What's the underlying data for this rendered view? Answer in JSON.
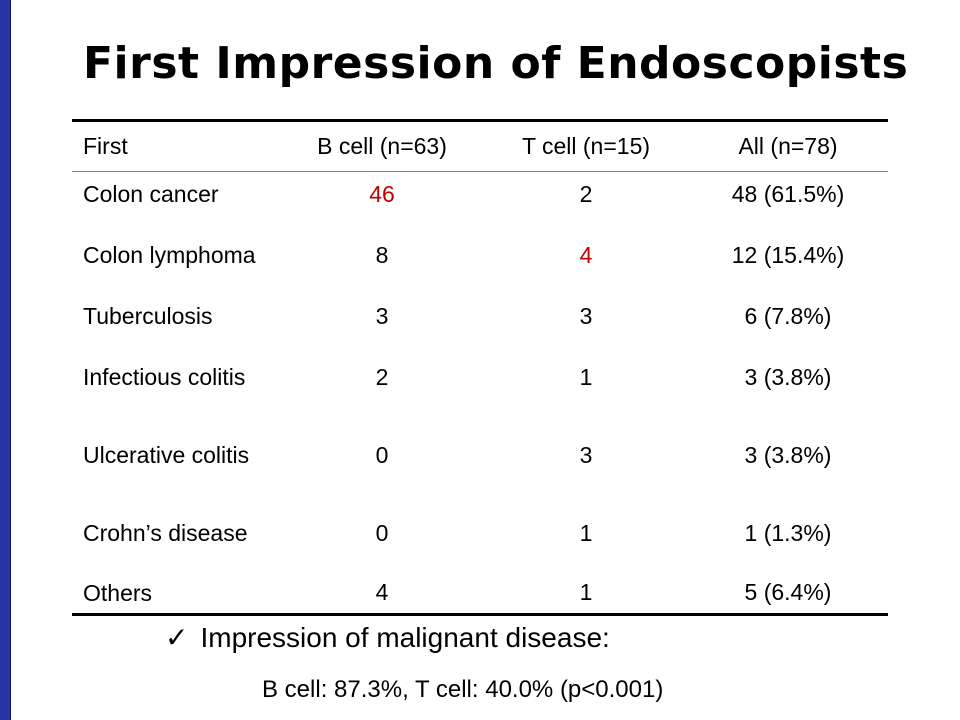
{
  "title": "First Impression of Endoscopists",
  "table": {
    "headers": [
      "First",
      "B cell (n=63)",
      "T cell (n=15)",
      "All (n=78)"
    ],
    "rows": [
      {
        "label": "Colon cancer",
        "b_cell": "46",
        "t_cell": "2",
        "all": "48 (61.5%)"
      },
      {
        "label": "Colon lymphoma",
        "b_cell": "8",
        "t_cell": "4",
        "all": "12 (15.4%)"
      },
      {
        "label": "Tuberculosis",
        "b_cell": "3",
        "t_cell": "3",
        "all": "6 (7.8%)"
      },
      {
        "label": "Infectious colitis",
        "b_cell": "2",
        "t_cell": "1",
        "all": "3 (3.8%)"
      },
      {
        "label": "Ulcerative colitis",
        "b_cell": "0",
        "t_cell": "3",
        "all": "3 (3.8%)"
      },
      {
        "label": "Crohn’s disease",
        "b_cell": "0",
        "t_cell": "1",
        "all": "1 (1.3%)"
      },
      {
        "label": "Others",
        "b_cell": "4",
        "t_cell": "1",
        "all": "5 (6.4%)"
      }
    ],
    "highlight_color": "#c00000"
  },
  "note": {
    "icon": "checkmark-icon",
    "text": "Impression of malignant disease:",
    "detail": "B cell: 87.3%, T cell: 40.0% (p<0.001)"
  },
  "colors": {
    "accent_bar": "#2733a6"
  }
}
